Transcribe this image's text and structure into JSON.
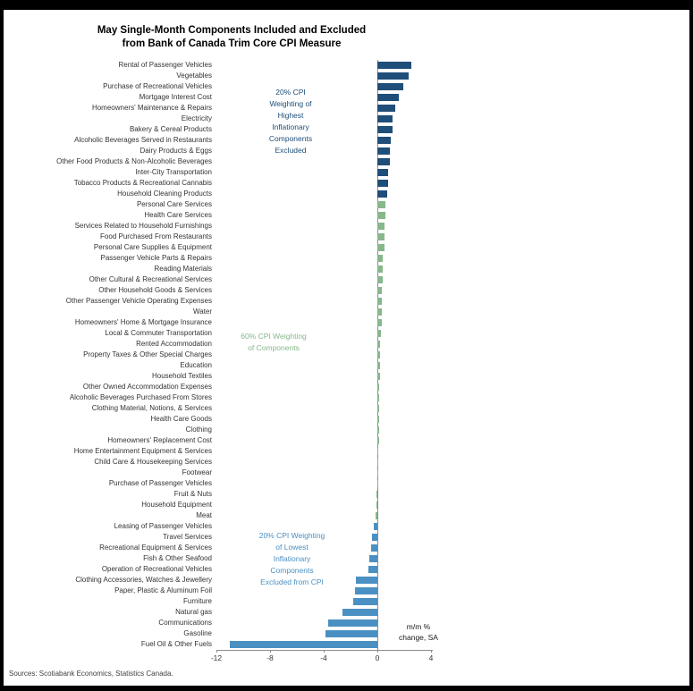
{
  "title": {
    "line1": "May Single-Month Components Included and Excluded",
    "line2": "from Bank of Canada Trim Core CPI Measure"
  },
  "source": "Sources: Scotiabank Economics, Statistics Canada.",
  "axis_note": {
    "text": "m/m %\nchange, SA"
  },
  "annotations": {
    "high": {
      "text": "20% CPI\nWeighting of\nHighest\nInflationary\nComponents\nExcluded",
      "color": "#1f4e79"
    },
    "mid": {
      "text": "60% CPI Weighting\nof Components",
      "color": "#87b78b"
    },
    "low": {
      "text": "20% CPI Weighting\nof Lowest\nInflationary\nComponents\nExcluded from CPI",
      "color": "#4a90c2"
    }
  },
  "chart_data": {
    "type": "bar",
    "orientation": "horizontal",
    "xlabel": "m/m % change, SA",
    "xlim": [
      -12,
      4
    ],
    "xticks": [
      -12,
      -8,
      -4,
      0,
      4
    ],
    "legend_position": "none",
    "grid": "zero-line-only",
    "colors": {
      "high": "#1f4e79",
      "mid": "#87b78b",
      "low": "#4a90c2"
    },
    "groups": {
      "high": "20% CPI Weighting of Highest Inflationary Components Excluded",
      "mid": "60% CPI Weighting of Components",
      "low": "20% CPI Weighting of Lowest Inflationary Components Excluded from CPI"
    },
    "items": [
      {
        "label": "Rental of Passenger Vehicles",
        "value": 2.5,
        "group": "high"
      },
      {
        "label": "Vegetables",
        "value": 2.3,
        "group": "high"
      },
      {
        "label": "Purchase of Recreational Vehicles",
        "value": 1.9,
        "group": "high"
      },
      {
        "label": "Mortgage Interest Cost",
        "value": 1.6,
        "group": "high"
      },
      {
        "label": "Homeowners' Maintenance & Repairs",
        "value": 1.3,
        "group": "high"
      },
      {
        "label": "Electricity",
        "value": 1.1,
        "group": "high"
      },
      {
        "label": "Bakery & Cereal Products",
        "value": 1.1,
        "group": "high"
      },
      {
        "label": "Alcoholic Beverages Served in Restaurants",
        "value": 1.0,
        "group": "high"
      },
      {
        "label": "Dairy Products & Eggs",
        "value": 0.9,
        "group": "high"
      },
      {
        "label": "Other Food Products & Non-Alcoholic Beverages",
        "value": 0.9,
        "group": "high"
      },
      {
        "label": "Inter-City Transportation",
        "value": 0.8,
        "group": "high"
      },
      {
        "label": "Tobacco Products & Recreational Cannabis",
        "value": 0.8,
        "group": "high"
      },
      {
        "label": "Household Cleaning Products",
        "value": 0.7,
        "group": "high"
      },
      {
        "label": "Personal Care Services",
        "value": 0.6,
        "group": "mid"
      },
      {
        "label": "Health Care Services",
        "value": 0.6,
        "group": "mid"
      },
      {
        "label": "Services Related to Household Furnishings",
        "value": 0.5,
        "group": "mid"
      },
      {
        "label": "Food Purchased From Restaurants",
        "value": 0.5,
        "group": "mid"
      },
      {
        "label": "Personal Care Supplies & Equipment",
        "value": 0.5,
        "group": "mid"
      },
      {
        "label": "Passenger Vehicle Parts & Repairs",
        "value": 0.4,
        "group": "mid"
      },
      {
        "label": "Reading Materials",
        "value": 0.4,
        "group": "mid"
      },
      {
        "label": "Other Cultural & Recreational Services",
        "value": 0.4,
        "group": "mid"
      },
      {
        "label": "Other Household Goods & Services",
        "value": 0.35,
        "group": "mid"
      },
      {
        "label": "Other Passenger Vehicle Operating Expenses",
        "value": 0.3,
        "group": "mid"
      },
      {
        "label": "Water",
        "value": 0.3,
        "group": "mid"
      },
      {
        "label": "Homeowners' Home & Mortgage Insurance",
        "value": 0.3,
        "group": "mid"
      },
      {
        "label": "Local & Commuter Transportation",
        "value": 0.25,
        "group": "mid"
      },
      {
        "label": "Rented Accommodation",
        "value": 0.2,
        "group": "mid"
      },
      {
        "label": "Property Taxes & Other Special Charges",
        "value": 0.2,
        "group": "mid"
      },
      {
        "label": "Education",
        "value": 0.2,
        "group": "mid"
      },
      {
        "label": "Household Textiles",
        "value": 0.2,
        "group": "mid"
      },
      {
        "label": "Other Owned Accommodation Expenses",
        "value": 0.15,
        "group": "mid"
      },
      {
        "label": "Alcoholic Beverages Purchased From Stores",
        "value": 0.15,
        "group": "mid"
      },
      {
        "label": "Clothing Material, Notions, & Services",
        "value": 0.1,
        "group": "mid"
      },
      {
        "label": "Health Care Goods",
        "value": 0.1,
        "group": "mid"
      },
      {
        "label": "Clothing",
        "value": 0.1,
        "group": "mid"
      },
      {
        "label": "Homeowners' Replacement Cost",
        "value": 0.1,
        "group": "mid"
      },
      {
        "label": "Home Entertainment Equipment & Services",
        "value": 0.05,
        "group": "mid"
      },
      {
        "label": "Child Care & Housekeeping Services",
        "value": 0.05,
        "group": "mid"
      },
      {
        "label": "Footwear",
        "value": 0.05,
        "group": "mid"
      },
      {
        "label": "Purchase of Passenger Vehicles",
        "value": 0.0,
        "group": "mid"
      },
      {
        "label": "Fruit & Nuts",
        "value": -0.05,
        "group": "mid"
      },
      {
        "label": "Household Equipment",
        "value": -0.1,
        "group": "mid"
      },
      {
        "label": "Meat",
        "value": -0.15,
        "group": "mid"
      },
      {
        "label": "Leasing of Passenger Vehicles",
        "value": -0.3,
        "group": "low"
      },
      {
        "label": "Travel Services",
        "value": -0.4,
        "group": "low"
      },
      {
        "label": "Recreational Equipment & Services",
        "value": -0.5,
        "group": "low"
      },
      {
        "label": "Fish & Other Seafood",
        "value": -0.6,
        "group": "low"
      },
      {
        "label": "Operation of Recreational Vehicles",
        "value": -0.7,
        "group": "low"
      },
      {
        "label": "Clothing Accessories, Watches & Jewellery",
        "value": -1.6,
        "group": "low"
      },
      {
        "label": "Paper, Plastic & Aluminum Foil",
        "value": -1.7,
        "group": "low"
      },
      {
        "label": "Furniture",
        "value": -1.8,
        "group": "low"
      },
      {
        "label": "Natural gas",
        "value": -2.6,
        "group": "low"
      },
      {
        "label": "Communications",
        "value": -3.7,
        "group": "low"
      },
      {
        "label": "Gasoline",
        "value": -3.9,
        "group": "low"
      },
      {
        "label": "Fuel Oil & Other Fuels",
        "value": -11.0,
        "group": "low"
      }
    ]
  }
}
